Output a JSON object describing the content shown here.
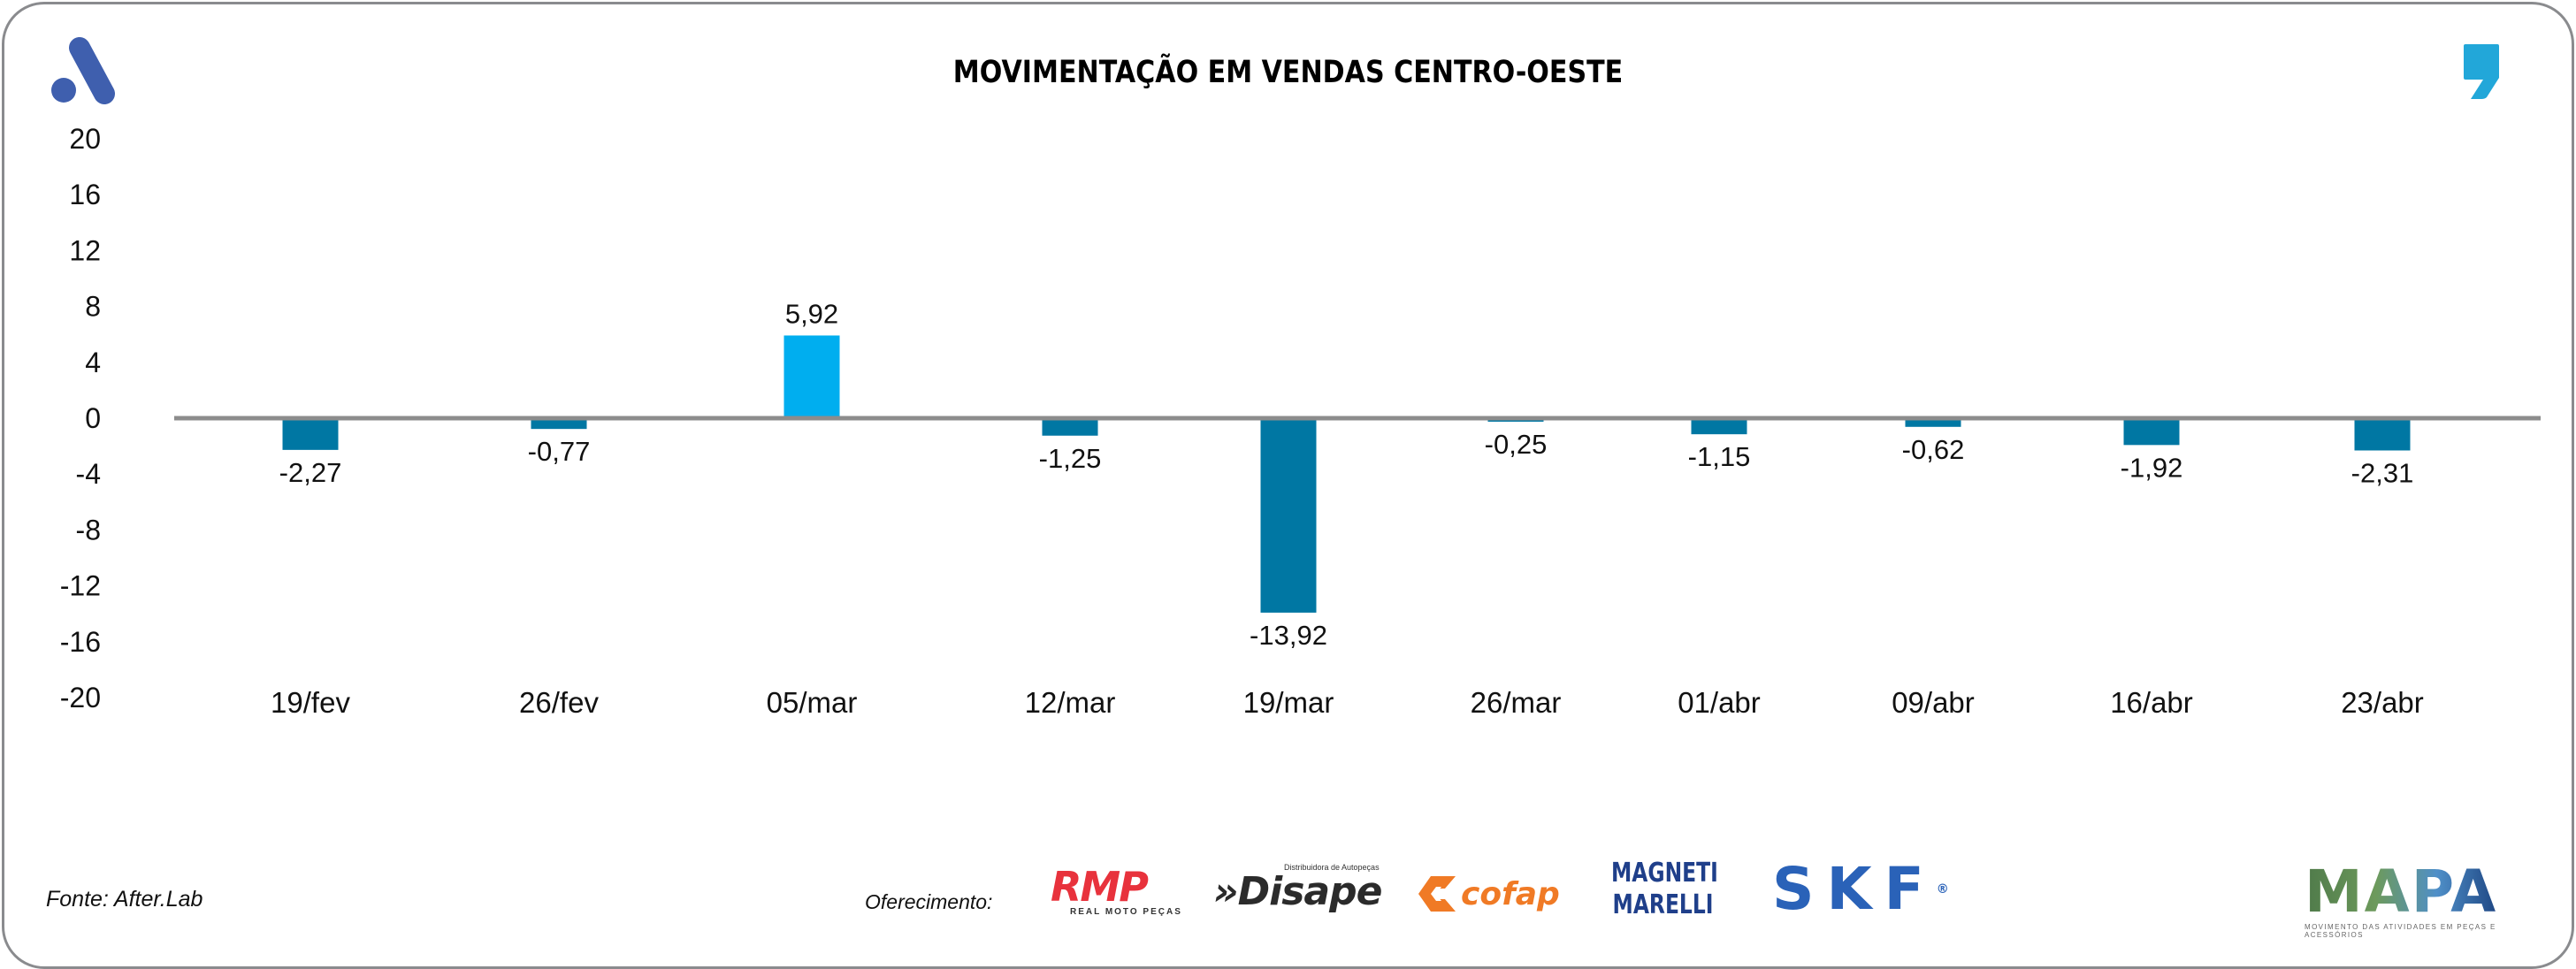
{
  "header": {
    "title": "MOVIMENTAÇÃO EM VENDAS CENTRO-OESTE",
    "logo_icon": "after-lab-a-logo-icon",
    "corner_icon": "comma-quote-icon"
  },
  "colors": {
    "positive_bar": "#00AEEF",
    "negative_bar": "#0077A3",
    "zero_line": "#8C8C8C",
    "logo_blue": "#3F5FAE",
    "comma_blue": "#22A7D9",
    "frame": "#8A8B8E"
  },
  "chart_data": {
    "type": "bar",
    "title": "MOVIMENTAÇÃO EM VENDAS CENTRO-OESTE",
    "xlabel": "",
    "ylabel": "",
    "categories": [
      "19/fev",
      "26/fev",
      "05/mar",
      "12/mar",
      "19/mar",
      "26/mar",
      "01/abr",
      "09/abr",
      "16/abr",
      "23/abr"
    ],
    "values": [
      -2.27,
      -0.77,
      5.92,
      -1.25,
      -13.92,
      -0.25,
      -1.15,
      -0.62,
      -1.92,
      -2.31
    ],
    "value_labels": [
      "-2,27",
      "-0,77",
      "5,92",
      "-1,25",
      "-13,92",
      "-0,25",
      "-1,15",
      "-0,62",
      "-1,92",
      "-2,31"
    ],
    "ylim": [
      -20,
      20
    ],
    "yticks": [
      20,
      16,
      12,
      8,
      4,
      0,
      -4,
      -8,
      -12,
      -16,
      -20
    ],
    "ytick_labels": [
      "20",
      "16",
      "12",
      "8",
      "4",
      "0",
      "-4",
      "-8",
      "-12",
      "-16",
      "-20"
    ],
    "grid": false,
    "legend": "none"
  },
  "footer": {
    "source": "Fonte: After.Lab",
    "sponsor_label": "Oferecimento:",
    "sponsors": {
      "rmp": {
        "mark": "RMP",
        "sub": "REAL MOTO PEÇAS"
      },
      "disape": {
        "top": "Distribuidora de Autopeças",
        "mark": "»Disape"
      },
      "cofap": {
        "mark": "cofap"
      },
      "magneti": {
        "line1": "MAGNETI",
        "line2": "MARELLI"
      },
      "skf": {
        "mark": "SKF",
        "reg": "®"
      }
    },
    "mapa": {
      "mark": "MAPA",
      "sub": "MOVIMENTO DAS ATIVIDADES EM PEÇAS E ACESSÓRIOS"
    }
  }
}
